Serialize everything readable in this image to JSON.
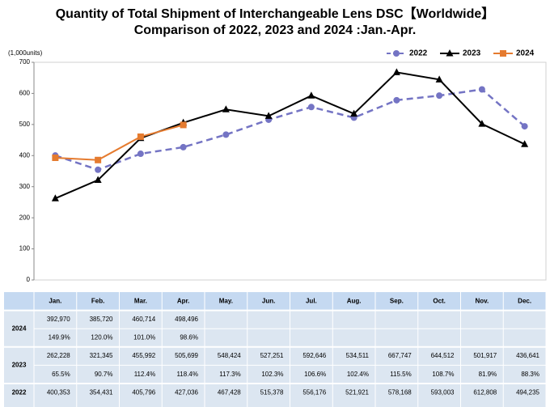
{
  "chart_data": {
    "type": "line",
    "title": "Quantity of Total Shipment of Interchangeable Lens DSC【Worldwide】",
    "subtitle": "Comparison of 2022, 2023 and 2024 :Jan.-Apr.",
    "y_label": "(1,000units)",
    "categories": [
      "Jan.",
      "Feb.",
      "Mar.",
      "Apr.",
      "May.",
      "Jun.",
      "Jul.",
      "Aug.",
      "Sep.",
      "Oct.",
      "Nov.",
      "Dec."
    ],
    "series": [
      {
        "name": "2022",
        "color": "#7474c4",
        "marker": "circle",
        "dashed": true,
        "values": [
          400.353,
          354.431,
          405.796,
          427.036,
          467.428,
          515.378,
          556.176,
          521.921,
          578.168,
          593.003,
          612.808,
          494.235
        ]
      },
      {
        "name": "2023",
        "color": "#000000",
        "marker": "triangle",
        "dashed": false,
        "values": [
          262.228,
          321.345,
          455.992,
          505.699,
          548.424,
          527.251,
          592.646,
          534.511,
          667.747,
          644.512,
          501.917,
          436.641
        ]
      },
      {
        "name": "2024",
        "color": "#e57b2f",
        "marker": "square",
        "dashed": false,
        "values": [
          392.97,
          385.72,
          460.714,
          498.496,
          null,
          null,
          null,
          null,
          null,
          null,
          null,
          null
        ]
      }
    ],
    "ylim": [
      0,
      700
    ],
    "yticks": [
      0,
      100,
      200,
      300,
      400,
      500,
      600,
      700
    ],
    "grid": false,
    "legend": "top-right"
  },
  "table": {
    "columns": [
      "Jan.",
      "Feb.",
      "Mar.",
      "Apr.",
      "May.",
      "Jun.",
      "Jul.",
      "Aug.",
      "Sep.",
      "Oct.",
      "Nov.",
      "Dec."
    ],
    "groups": [
      {
        "label": "2024",
        "rows": [
          [
            "392,970",
            "385,720",
            "460,714",
            "498,496"
          ],
          [
            "149.9%",
            "120.0%",
            "101.0%",
            "98.6%"
          ]
        ]
      },
      {
        "label": "2023",
        "rows": [
          [
            "262,228",
            "321,345",
            "455,992",
            "505,699",
            "548,424",
            "527,251",
            "592,646",
            "534,511",
            "667,747",
            "644,512",
            "501,917",
            "436,641"
          ],
          [
            "65.5%",
            "90.7%",
            "112.4%",
            "118.4%",
            "117.3%",
            "102.3%",
            "106.6%",
            "102.4%",
            "115.5%",
            "108.7%",
            "81.9%",
            "88.3%"
          ]
        ]
      },
      {
        "label": "2022",
        "rows": [
          [
            "400,353",
            "354,431",
            "405,796",
            "427,036",
            "467,428",
            "515,378",
            "556,176",
            "521,921",
            "578,168",
            "593,003",
            "612,808",
            "494,235"
          ]
        ]
      }
    ]
  }
}
